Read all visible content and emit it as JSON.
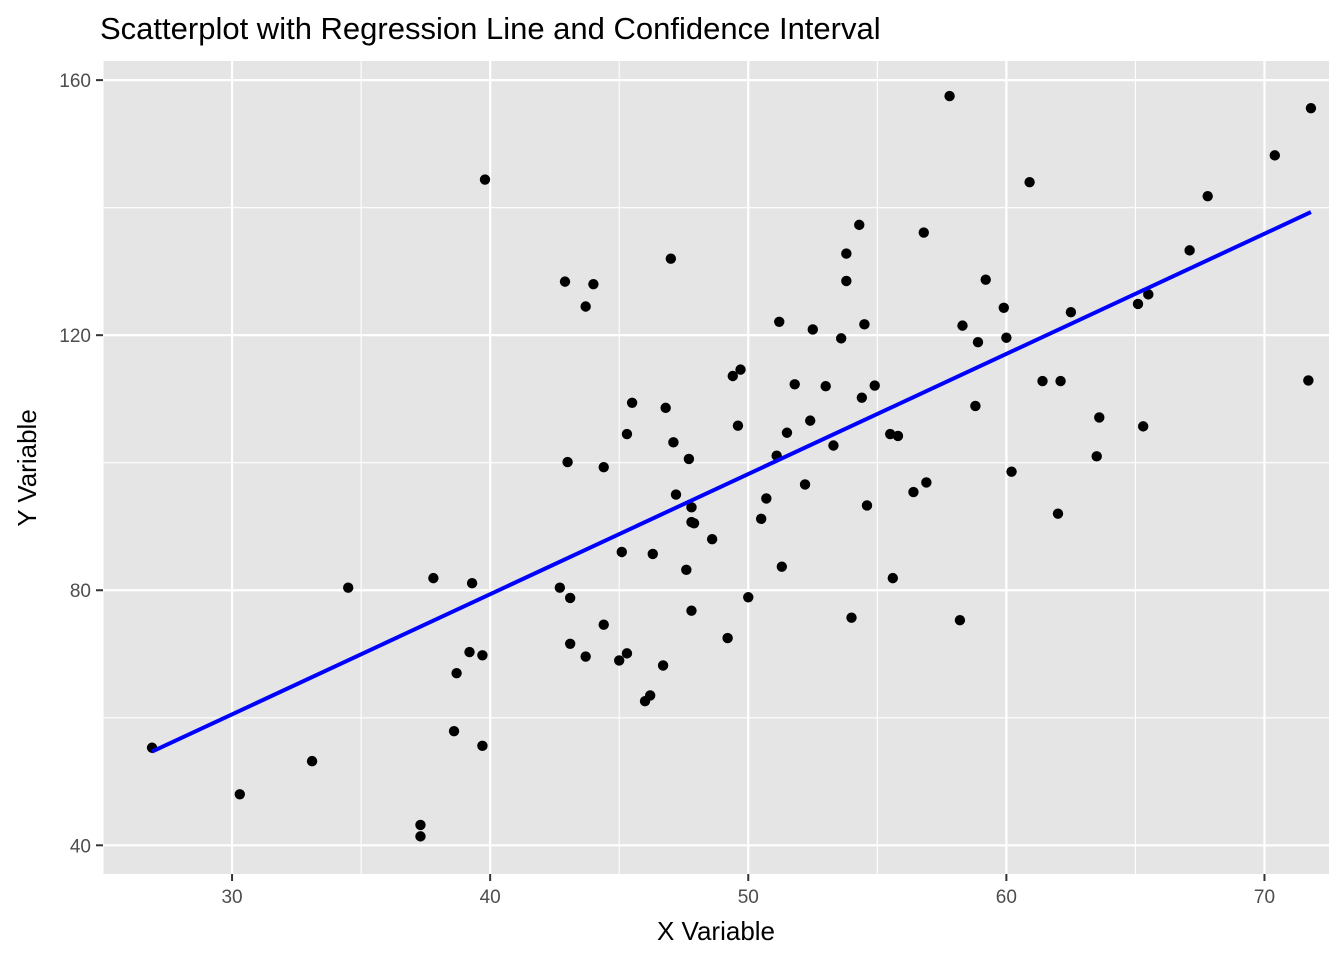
{
  "chart_data": {
    "type": "scatter",
    "title": "Scatterplot with Regression Line and Confidence Interval",
    "xlabel": "X Variable",
    "ylabel": "Y Variable",
    "xlim": [
      25,
      72.5
    ],
    "ylim": [
      35.5,
      163
    ],
    "x_ticks": [
      30,
      40,
      50,
      60,
      70
    ],
    "y_ticks": [
      40,
      80,
      120,
      160
    ],
    "grid": true,
    "legend": "none",
    "colors": {
      "panel_background": "#e5e5e5",
      "grid": "#ffffff",
      "points": "#000000",
      "regression_line": "#0000ff"
    },
    "regression_line": {
      "x": [
        26.9,
        71.8
      ],
      "y": [
        54.7,
        139.3
      ]
    },
    "points": [
      {
        "x": 26.9,
        "y": 55.3
      },
      {
        "x": 30.3,
        "y": 48.0
      },
      {
        "x": 33.1,
        "y": 53.2
      },
      {
        "x": 34.5,
        "y": 80.4
      },
      {
        "x": 37.3,
        "y": 43.2
      },
      {
        "x": 37.3,
        "y": 41.4
      },
      {
        "x": 37.8,
        "y": 81.9
      },
      {
        "x": 38.6,
        "y": 57.9
      },
      {
        "x": 38.7,
        "y": 67.0
      },
      {
        "x": 39.2,
        "y": 70.3
      },
      {
        "x": 39.3,
        "y": 81.1
      },
      {
        "x": 39.7,
        "y": 55.6
      },
      {
        "x": 39.7,
        "y": 69.8
      },
      {
        "x": 39.8,
        "y": 144.4
      },
      {
        "x": 42.7,
        "y": 80.4
      },
      {
        "x": 42.9,
        "y": 128.4
      },
      {
        "x": 43.0,
        "y": 100.1
      },
      {
        "x": 43.1,
        "y": 78.8
      },
      {
        "x": 43.1,
        "y": 71.6
      },
      {
        "x": 43.7,
        "y": 69.6
      },
      {
        "x": 43.7,
        "y": 124.5
      },
      {
        "x": 44.0,
        "y": 128.0
      },
      {
        "x": 44.4,
        "y": 74.6
      },
      {
        "x": 44.4,
        "y": 99.3
      },
      {
        "x": 45.0,
        "y": 69.0
      },
      {
        "x": 45.1,
        "y": 86.0
      },
      {
        "x": 45.3,
        "y": 70.1
      },
      {
        "x": 45.3,
        "y": 104.5
      },
      {
        "x": 45.5,
        "y": 109.4
      },
      {
        "x": 46.0,
        "y": 62.6
      },
      {
        "x": 46.2,
        "y": 63.5
      },
      {
        "x": 46.3,
        "y": 85.7
      },
      {
        "x": 46.7,
        "y": 68.2
      },
      {
        "x": 46.8,
        "y": 108.6
      },
      {
        "x": 47.0,
        "y": 132.0
      },
      {
        "x": 47.1,
        "y": 103.2
      },
      {
        "x": 47.2,
        "y": 95.0
      },
      {
        "x": 47.6,
        "y": 83.2
      },
      {
        "x": 47.7,
        "y": 100.6
      },
      {
        "x": 47.8,
        "y": 76.8
      },
      {
        "x": 47.8,
        "y": 93.0
      },
      {
        "x": 47.8,
        "y": 90.7
      },
      {
        "x": 47.9,
        "y": 90.5
      },
      {
        "x": 48.6,
        "y": 88.0
      },
      {
        "x": 49.2,
        "y": 72.5
      },
      {
        "x": 49.4,
        "y": 113.6
      },
      {
        "x": 49.6,
        "y": 105.8
      },
      {
        "x": 49.7,
        "y": 114.6
      },
      {
        "x": 50.0,
        "y": 78.9
      },
      {
        "x": 50.5,
        "y": 91.2
      },
      {
        "x": 50.7,
        "y": 94.4
      },
      {
        "x": 51.1,
        "y": 101.1
      },
      {
        "x": 51.2,
        "y": 122.1
      },
      {
        "x": 51.3,
        "y": 83.7
      },
      {
        "x": 51.5,
        "y": 104.7
      },
      {
        "x": 51.8,
        "y": 112.3
      },
      {
        "x": 52.2,
        "y": 96.6
      },
      {
        "x": 52.4,
        "y": 106.6
      },
      {
        "x": 52.5,
        "y": 120.9
      },
      {
        "x": 53.0,
        "y": 112.0
      },
      {
        "x": 53.3,
        "y": 102.7
      },
      {
        "x": 53.6,
        "y": 119.5
      },
      {
        "x": 53.8,
        "y": 128.5
      },
      {
        "x": 53.8,
        "y": 132.8
      },
      {
        "x": 54.0,
        "y": 75.7
      },
      {
        "x": 54.3,
        "y": 137.3
      },
      {
        "x": 54.4,
        "y": 110.2
      },
      {
        "x": 54.5,
        "y": 121.7
      },
      {
        "x": 54.6,
        "y": 93.3
      },
      {
        "x": 54.9,
        "y": 112.1
      },
      {
        "x": 55.5,
        "y": 104.5
      },
      {
        "x": 55.6,
        "y": 81.9
      },
      {
        "x": 55.8,
        "y": 104.2
      },
      {
        "x": 56.4,
        "y": 95.4
      },
      {
        "x": 56.8,
        "y": 136.1
      },
      {
        "x": 56.9,
        "y": 96.9
      },
      {
        "x": 57.8,
        "y": 157.5
      },
      {
        "x": 58.2,
        "y": 75.3
      },
      {
        "x": 58.3,
        "y": 121.5
      },
      {
        "x": 58.8,
        "y": 108.9
      },
      {
        "x": 58.9,
        "y": 118.9
      },
      {
        "x": 59.2,
        "y": 128.7
      },
      {
        "x": 59.9,
        "y": 124.3
      },
      {
        "x": 60.0,
        "y": 119.6
      },
      {
        "x": 60.2,
        "y": 98.6
      },
      {
        "x": 60.9,
        "y": 144.0
      },
      {
        "x": 61.4,
        "y": 112.8
      },
      {
        "x": 62.0,
        "y": 92.0
      },
      {
        "x": 62.1,
        "y": 112.8
      },
      {
        "x": 62.5,
        "y": 123.6
      },
      {
        "x": 63.5,
        "y": 101.0
      },
      {
        "x": 63.6,
        "y": 107.1
      },
      {
        "x": 65.1,
        "y": 124.9
      },
      {
        "x": 65.3,
        "y": 105.7
      },
      {
        "x": 65.5,
        "y": 126.4
      },
      {
        "x": 67.1,
        "y": 133.3
      },
      {
        "x": 67.8,
        "y": 141.8
      },
      {
        "x": 70.4,
        "y": 148.2
      },
      {
        "x": 71.7,
        "y": 112.9
      },
      {
        "x": 71.8,
        "y": 155.6
      }
    ]
  }
}
